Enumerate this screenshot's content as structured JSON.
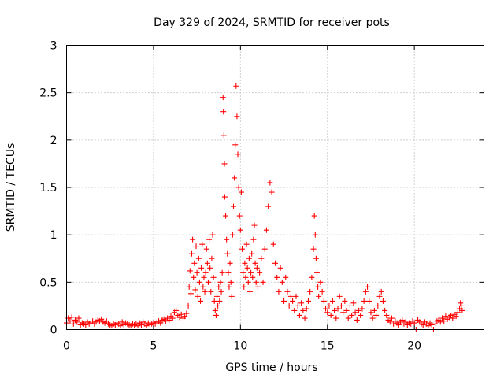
{
  "chart_data": {
    "type": "scatter",
    "title": "Day 329 of 2024, SRMTID for receiver pots",
    "xlabel": "GPS time / hours",
    "ylabel": "SRMTID / TECUs",
    "xlim": [
      0,
      24
    ],
    "ylim": [
      0,
      3
    ],
    "xticks": [
      0,
      5,
      10,
      15,
      20
    ],
    "xtick_labels": [
      "0",
      "5",
      "10",
      "15",
      "20"
    ],
    "yticks": [
      0,
      0.5,
      1,
      1.5,
      2,
      2.5,
      3
    ],
    "ytick_labels": [
      "0",
      "0.5",
      "1",
      "1.5",
      "2",
      "2.5",
      "3"
    ],
    "grid": true,
    "marker": "+",
    "series": [
      {
        "name": "SRMTID",
        "color": "#ff0000",
        "points": [
          [
            0.0,
            0.07
          ],
          [
            0.1,
            0.12
          ],
          [
            0.2,
            0.09
          ],
          [
            0.3,
            0.13
          ],
          [
            0.4,
            0.06
          ],
          [
            0.5,
            0.1
          ],
          [
            0.6,
            0.08
          ],
          [
            0.7,
            0.12
          ],
          [
            0.8,
            0.05
          ],
          [
            0.9,
            0.07
          ],
          [
            1.0,
            0.06
          ],
          [
            1.1,
            0.05
          ],
          [
            1.2,
            0.08
          ],
          [
            1.3,
            0.06
          ],
          [
            1.4,
            0.07
          ],
          [
            1.5,
            0.09
          ],
          [
            1.6,
            0.06
          ],
          [
            1.7,
            0.08
          ],
          [
            1.8,
            0.1
          ],
          [
            1.9,
            0.09
          ],
          [
            2.0,
            0.11
          ],
          [
            2.1,
            0.08
          ],
          [
            2.2,
            0.07
          ],
          [
            2.3,
            0.09
          ],
          [
            2.4,
            0.06
          ],
          [
            2.5,
            0.05
          ],
          [
            2.6,
            0.04
          ],
          [
            2.7,
            0.06
          ],
          [
            2.8,
            0.05
          ],
          [
            2.9,
            0.07
          ],
          [
            3.0,
            0.06
          ],
          [
            3.1,
            0.04
          ],
          [
            3.2,
            0.08
          ],
          [
            3.3,
            0.05
          ],
          [
            3.4,
            0.07
          ],
          [
            3.5,
            0.06
          ],
          [
            3.6,
            0.05
          ],
          [
            3.7,
            0.04
          ],
          [
            3.8,
            0.06
          ],
          [
            3.9,
            0.05
          ],
          [
            4.0,
            0.06
          ],
          [
            4.1,
            0.04
          ],
          [
            4.2,
            0.07
          ],
          [
            4.3,
            0.05
          ],
          [
            4.4,
            0.08
          ],
          [
            4.5,
            0.06
          ],
          [
            4.6,
            0.04
          ],
          [
            4.7,
            0.07
          ],
          [
            4.8,
            0.05
          ],
          [
            4.9,
            0.06
          ],
          [
            5.0,
            0.07
          ],
          [
            5.1,
            0.06
          ],
          [
            5.2,
            0.08
          ],
          [
            5.3,
            0.09
          ],
          [
            5.4,
            0.07
          ],
          [
            5.5,
            0.1
          ],
          [
            5.6,
            0.11
          ],
          [
            5.7,
            0.09
          ],
          [
            5.8,
            0.12
          ],
          [
            5.9,
            0.1
          ],
          [
            6.0,
            0.14
          ],
          [
            6.1,
            0.12
          ],
          [
            6.2,
            0.18
          ],
          [
            6.3,
            0.2
          ],
          [
            6.4,
            0.15
          ],
          [
            6.5,
            0.13
          ],
          [
            6.6,
            0.16
          ],
          [
            6.7,
            0.12
          ],
          [
            6.8,
            0.14
          ],
          [
            6.9,
            0.17
          ],
          [
            7.0,
            0.25
          ],
          [
            7.05,
            0.45
          ],
          [
            7.1,
            0.62
          ],
          [
            7.15,
            0.38
          ],
          [
            7.2,
            0.8
          ],
          [
            7.25,
            0.95
          ],
          [
            7.3,
            0.55
          ],
          [
            7.35,
            0.7
          ],
          [
            7.4,
            0.42
          ],
          [
            7.45,
            0.88
          ],
          [
            7.5,
            0.6
          ],
          [
            7.55,
            0.35
          ],
          [
            7.6,
            0.75
          ],
          [
            7.65,
            0.5
          ],
          [
            7.7,
            0.3
          ],
          [
            7.75,
            0.65
          ],
          [
            7.8,
            0.9
          ],
          [
            7.85,
            0.45
          ],
          [
            7.9,
            0.55
          ],
          [
            7.95,
            0.4
          ],
          [
            8.0,
            0.6
          ],
          [
            8.05,
            0.85
          ],
          [
            8.1,
            0.7
          ],
          [
            8.15,
            0.5
          ],
          [
            8.2,
            0.95
          ],
          [
            8.25,
            0.65
          ],
          [
            8.3,
            0.4
          ],
          [
            8.35,
            0.75
          ],
          [
            8.4,
            1.0
          ],
          [
            8.45,
            0.55
          ],
          [
            8.5,
            0.3
          ],
          [
            8.55,
            0.2
          ],
          [
            8.6,
            0.15
          ],
          [
            8.65,
            0.35
          ],
          [
            8.7,
            0.25
          ],
          [
            8.75,
            0.45
          ],
          [
            8.8,
            0.3
          ],
          [
            8.85,
            0.5
          ],
          [
            8.9,
            0.4
          ],
          [
            8.95,
            0.6
          ],
          [
            9.0,
            2.45
          ],
          [
            9.02,
            2.3
          ],
          [
            9.05,
            2.05
          ],
          [
            9.08,
            1.75
          ],
          [
            9.1,
            1.4
          ],
          [
            9.15,
            1.2
          ],
          [
            9.2,
            0.95
          ],
          [
            9.25,
            0.8
          ],
          [
            9.3,
            0.6
          ],
          [
            9.35,
            0.45
          ],
          [
            9.4,
            0.7
          ],
          [
            9.45,
            0.5
          ],
          [
            9.5,
            0.35
          ],
          [
            9.55,
            1.0
          ],
          [
            9.6,
            1.3
          ],
          [
            9.65,
            1.6
          ],
          [
            9.7,
            1.95
          ],
          [
            9.75,
            2.57
          ],
          [
            9.8,
            2.25
          ],
          [
            9.85,
            1.85
          ],
          [
            9.9,
            1.5
          ],
          [
            9.95,
            1.2
          ],
          [
            10.0,
            1.05
          ],
          [
            10.05,
            1.45
          ],
          [
            10.1,
            0.85
          ],
          [
            10.15,
            0.6
          ],
          [
            10.2,
            0.45
          ],
          [
            10.25,
            0.7
          ],
          [
            10.3,
            0.55
          ],
          [
            10.35,
            0.9
          ],
          [
            10.4,
            0.65
          ],
          [
            10.45,
            0.5
          ],
          [
            10.5,
            0.75
          ],
          [
            10.55,
            0.4
          ],
          [
            10.6,
            0.6
          ],
          [
            10.65,
            0.8
          ],
          [
            10.7,
            0.55
          ],
          [
            10.75,
            0.95
          ],
          [
            10.8,
            1.1
          ],
          [
            10.85,
            0.7
          ],
          [
            10.9,
            0.5
          ],
          [
            10.95,
            0.65
          ],
          [
            11.0,
            0.45
          ],
          [
            11.1,
            0.6
          ],
          [
            11.2,
            0.75
          ],
          [
            11.3,
            0.5
          ],
          [
            11.4,
            0.85
          ],
          [
            11.5,
            1.05
          ],
          [
            11.6,
            1.3
          ],
          [
            11.7,
            1.55
          ],
          [
            11.8,
            1.45
          ],
          [
            11.9,
            0.9
          ],
          [
            12.0,
            0.7
          ],
          [
            12.1,
            0.55
          ],
          [
            12.2,
            0.4
          ],
          [
            12.3,
            0.65
          ],
          [
            12.4,
            0.5
          ],
          [
            12.5,
            0.3
          ],
          [
            12.6,
            0.55
          ],
          [
            12.7,
            0.4
          ],
          [
            12.8,
            0.25
          ],
          [
            12.9,
            0.35
          ],
          [
            13.0,
            0.3
          ],
          [
            13.1,
            0.2
          ],
          [
            13.2,
            0.35
          ],
          [
            13.3,
            0.25
          ],
          [
            13.4,
            0.15
          ],
          [
            13.5,
            0.28
          ],
          [
            13.6,
            0.2
          ],
          [
            13.7,
            0.12
          ],
          [
            13.8,
            0.22
          ],
          [
            13.9,
            0.3
          ],
          [
            14.0,
            0.4
          ],
          [
            14.1,
            0.55
          ],
          [
            14.2,
            0.85
          ],
          [
            14.25,
            1.2
          ],
          [
            14.3,
            1.0
          ],
          [
            14.35,
            0.75
          ],
          [
            14.4,
            0.6
          ],
          [
            14.45,
            0.45
          ],
          [
            14.5,
            0.35
          ],
          [
            14.6,
            0.5
          ],
          [
            14.7,
            0.4
          ],
          [
            14.8,
            0.3
          ],
          [
            14.9,
            0.22
          ],
          [
            15.0,
            0.18
          ],
          [
            15.1,
            0.25
          ],
          [
            15.2,
            0.15
          ],
          [
            15.3,
            0.3
          ],
          [
            15.4,
            0.2
          ],
          [
            15.5,
            0.12
          ],
          [
            15.6,
            0.22
          ],
          [
            15.7,
            0.35
          ],
          [
            15.8,
            0.25
          ],
          [
            15.9,
            0.18
          ],
          [
            16.0,
            0.3
          ],
          [
            16.1,
            0.2
          ],
          [
            16.2,
            0.12
          ],
          [
            16.3,
            0.25
          ],
          [
            16.4,
            0.15
          ],
          [
            16.5,
            0.28
          ],
          [
            16.6,
            0.18
          ],
          [
            16.7,
            0.1
          ],
          [
            16.8,
            0.2
          ],
          [
            16.9,
            0.15
          ],
          [
            17.0,
            0.22
          ],
          [
            17.1,
            0.3
          ],
          [
            17.2,
            0.4
          ],
          [
            17.3,
            0.45
          ],
          [
            17.4,
            0.3
          ],
          [
            17.5,
            0.18
          ],
          [
            17.6,
            0.12
          ],
          [
            17.7,
            0.2
          ],
          [
            17.8,
            0.15
          ],
          [
            17.9,
            0.25
          ],
          [
            18.0,
            0.35
          ],
          [
            18.1,
            0.4
          ],
          [
            18.2,
            0.3
          ],
          [
            18.3,
            0.2
          ],
          [
            18.4,
            0.15
          ],
          [
            18.5,
            0.1
          ],
          [
            18.6,
            0.08
          ],
          [
            18.7,
            0.12
          ],
          [
            18.8,
            0.06
          ],
          [
            18.9,
            0.09
          ],
          [
            19.0,
            0.07
          ],
          [
            19.1,
            0.05
          ],
          [
            19.2,
            0.08
          ],
          [
            19.3,
            0.1
          ],
          [
            19.4,
            0.06
          ],
          [
            19.5,
            0.08
          ],
          [
            19.6,
            0.05
          ],
          [
            19.7,
            0.07
          ],
          [
            19.8,
            0.06
          ],
          [
            19.9,
            0.09
          ],
          [
            20.0,
            0.07
          ],
          [
            20.1,
            0.0
          ],
          [
            20.2,
            0.1
          ],
          [
            20.3,
            0.08
          ],
          [
            20.4,
            0.06
          ],
          [
            20.5,
            0.05
          ],
          [
            20.6,
            0.08
          ],
          [
            20.7,
            0.06
          ],
          [
            20.8,
            0.04
          ],
          [
            20.9,
            0.07
          ],
          [
            21.0,
            0.05
          ],
          [
            21.1,
            0.0
          ],
          [
            21.2,
            0.06
          ],
          [
            21.3,
            0.09
          ],
          [
            21.4,
            0.1
          ],
          [
            21.5,
            0.08
          ],
          [
            21.6,
            0.12
          ],
          [
            21.7,
            0.09
          ],
          [
            21.8,
            0.14
          ],
          [
            21.9,
            0.11
          ],
          [
            22.0,
            0.13
          ],
          [
            22.1,
            0.15
          ],
          [
            22.2,
            0.12
          ],
          [
            22.3,
            0.16
          ],
          [
            22.4,
            0.14
          ],
          [
            22.5,
            0.18
          ],
          [
            22.6,
            0.22
          ],
          [
            22.65,
            0.28
          ],
          [
            22.7,
            0.25
          ],
          [
            22.75,
            0.2
          ]
        ]
      }
    ]
  }
}
